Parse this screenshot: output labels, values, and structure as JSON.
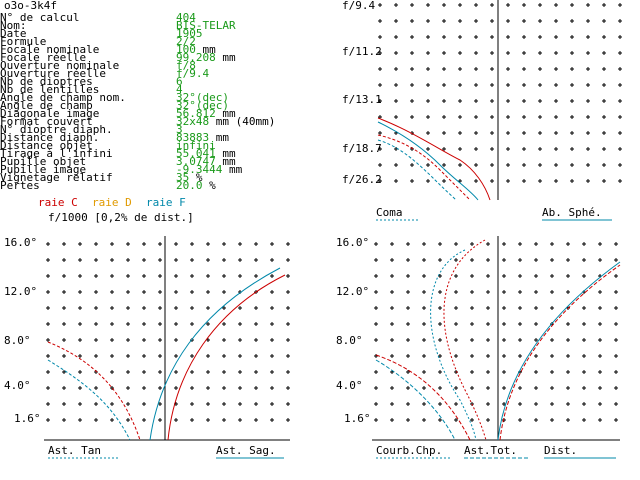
{
  "window": {
    "title": "o3o-3k4f"
  },
  "params": [
    {
      "label": "N° de calcul",
      "value": "404",
      "unit": ""
    },
    {
      "label": "Nom:",
      "value": "BIS-TELAR",
      "unit": ""
    },
    {
      "label": "Date",
      "value": "1905",
      "unit": ""
    },
    {
      "label": "Formule",
      "value": "2/2",
      "unit": ""
    },
    {
      "label": "Focale nominale",
      "value": "100",
      "unit": "mm"
    },
    {
      "label": "Focale réelle",
      "value": "99.208",
      "unit": "mm"
    },
    {
      "label": "Ouverture nominale",
      "value": "f/8",
      "unit": ""
    },
    {
      "label": "Ouverture réelle",
      "value": "f/9.4",
      "unit": ""
    },
    {
      "label": "Nb de dioptres",
      "value": "6",
      "unit": ""
    },
    {
      "label": "Nb de lentilles",
      "value": "4",
      "unit": ""
    },
    {
      "label": "Angle de champ nom.",
      "value": "32°(dec)",
      "unit": ""
    },
    {
      "label": "Angle de champ",
      "value": "32°(dec)",
      "unit": ""
    },
    {
      "label": "Diagonale image",
      "value": "56.812",
      "unit": "mm"
    },
    {
      "label": "Format couvert",
      "value": "32x48",
      "unit": "mm (40mm)"
    },
    {
      "label": "N° dioptre diaph.",
      "value": "3",
      "unit": ""
    },
    {
      "label": "Distance diaph.",
      "value": "83883",
      "unit": "mm"
    },
    {
      "label": "Distance objet",
      "value": "infini",
      "unit": ""
    },
    {
      "label": "Tirage à l'infini",
      "value": "55.041",
      "unit": "mm"
    },
    {
      "label": "Pupille objet",
      "value": "3.0747",
      "unit": "mm"
    },
    {
      "label": "Pupille image",
      "value": "-9.3444",
      "unit": "mm"
    },
    {
      "label": "Vignetage relatif",
      "value": "35",
      "unit": "%"
    },
    {
      "label": "Pertes",
      "value": "20.0",
      "unit": "%"
    }
  ],
  "legend": {
    "c": "raie C",
    "d": "raie D",
    "f": "raie F",
    "scale_note": "f/1000 [0,2% de dist.]"
  },
  "colors": {
    "c": "#cc0000",
    "d": "#e09a00",
    "f": "#0088aa",
    "value": "#1a9a1a"
  },
  "top_plot": {
    "ticks": [
      "f/9.4",
      "f/11.2",
      "f/13.1",
      "f/18.7",
      "f/26.2"
    ],
    "label_left": "Coma",
    "label_right": "Ab. Sphé."
  },
  "bottom_left_plot": {
    "ticks": [
      "16.0°",
      "12.0°",
      "8.0°",
      "4.0°",
      "1.6°"
    ],
    "label_left": "Ast. Tan",
    "label_right": "Ast. Sag."
  },
  "bottom_right_plot": {
    "ticks": [
      "16.0°",
      "12.0°",
      "8.0°",
      "4.0°",
      "1.6°"
    ],
    "label_1": "Courb.Chp.",
    "label_2": "Ast.Tot.",
    "label_3": "Dist."
  }
}
